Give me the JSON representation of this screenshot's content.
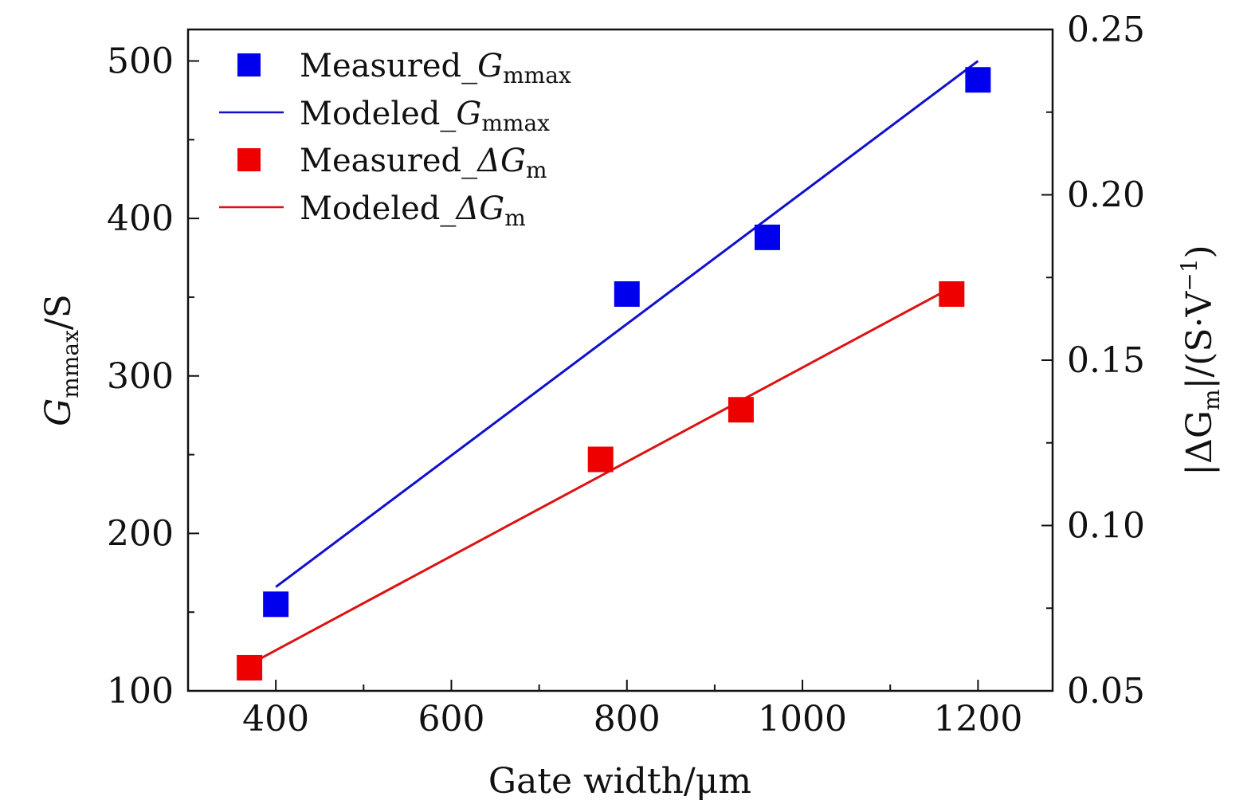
{
  "chart_data": {
    "type": "scatter",
    "xlabel": "Gate width/μm",
    "ylabel": {
      "main": "G",
      "sub": "mmax",
      "suffix": "/S"
    },
    "y2label": {
      "prefix": "|ΔG",
      "sub": "m",
      "mid": "|/(S·V",
      "sup": "−1",
      "suffix": ")"
    },
    "xlim": [
      300,
      1285
    ],
    "ylim": [
      100,
      520
    ],
    "y2lim": [
      0.05,
      0.25
    ],
    "x_ticks": [
      400,
      600,
      800,
      1000,
      1200
    ],
    "x_ticks_labels": [
      "400",
      "600",
      "800",
      "1000",
      "1200"
    ],
    "y_ticks": [
      100,
      200,
      300,
      400,
      500
    ],
    "y_ticks_labels": [
      "100",
      "200",
      "300",
      "400",
      "500"
    ],
    "y2_ticks": [
      0.05,
      0.1,
      0.15,
      0.2,
      0.25
    ],
    "y2_ticks_labels": [
      "0.05",
      "0.10",
      "0.15",
      "0.20",
      "0.25"
    ],
    "grid": false,
    "legend_position": "top-left",
    "series": [
      {
        "name": "Measured_G_mmax",
        "label_main": "Measured_",
        "label_var": "G",
        "label_sub": "mmax",
        "kind": "markers",
        "axis": "left",
        "color": "#0000ee",
        "x": [
          400,
          800,
          960,
          1200
        ],
        "y": [
          155,
          352,
          388,
          488
        ]
      },
      {
        "name": "Modeled_G_mmax",
        "label_main": "Modeled_",
        "label_var": "G",
        "label_sub": "mmax",
        "kind": "line",
        "axis": "left",
        "color": "#1010cc",
        "x": [
          400,
          1200
        ],
        "y": [
          166,
          500
        ]
      },
      {
        "name": "Measured_ΔG_m",
        "label_main": "Measured_",
        "label_var": "ΔG",
        "label_sub": "m",
        "kind": "markers",
        "axis": "right",
        "color": "#ee0000",
        "x": [
          370,
          770,
          930,
          1170
        ],
        "y": [
          0.057,
          0.12,
          0.135,
          0.17
        ]
      },
      {
        "name": "Modeled_ΔG_m",
        "label_main": "Modeled_",
        "label_var": "ΔG",
        "label_sub": "m",
        "kind": "line",
        "axis": "right",
        "color": "#dd1111",
        "x": [
          370,
          1170
        ],
        "y": [
          0.058,
          0.172
        ]
      }
    ]
  }
}
